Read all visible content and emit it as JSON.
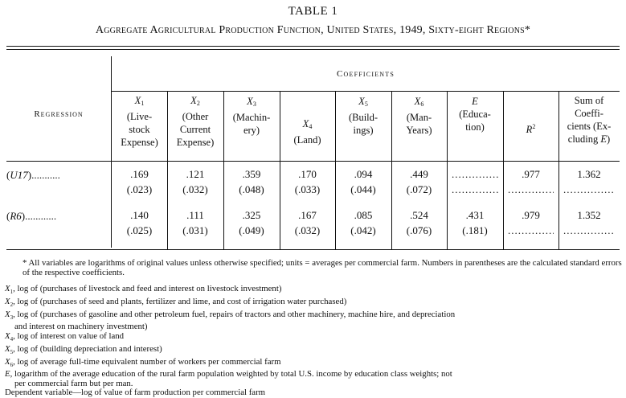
{
  "title": "TABLE 1",
  "subtitle": "Aggregate Agricultural Production Function, United States, 1949, Sixty-eight Regions*",
  "coefficients_header": "Coefficients",
  "regression_header": "Regression",
  "columns": [
    {
      "var": "X",
      "sub": "1",
      "desc": [
        "(Live-",
        "stock",
        "Expense)"
      ]
    },
    {
      "var": "X",
      "sub": "2",
      "desc": [
        "(Other",
        "Current",
        "Expense)"
      ]
    },
    {
      "var": "X",
      "sub": "3",
      "desc": [
        "(Machin-",
        "ery)"
      ]
    },
    {
      "var": "X",
      "sub": "4",
      "desc": [
        "(Land)"
      ]
    },
    {
      "var": "X",
      "sub": "5",
      "desc": [
        "(Build-",
        "ings)"
      ]
    },
    {
      "var": "X",
      "sub": "6",
      "desc": [
        "(Man-",
        "Years)"
      ]
    },
    {
      "var": "E",
      "sub": "",
      "desc": [
        "(Educa-",
        "tion)"
      ]
    },
    {
      "var": "R",
      "sub": "2",
      "desc": []
    },
    {
      "var": "",
      "sub": "",
      "desc": [
        "Sum of",
        "Coeffi-",
        "cients (Ex-",
        "cluding E)"
      ]
    }
  ],
  "rows": [
    {
      "label": "(U17)...........",
      "values": [
        ".169",
        ".121",
        ".359",
        ".170",
        ".094",
        ".449",
        "",
        ".977",
        "1.362"
      ],
      "errors": [
        "(.023)",
        "(.032)",
        "(.048)",
        "(.033)",
        "(.044)",
        "(.072)",
        "",
        "",
        ""
      ]
    },
    {
      "label": "(R6)............",
      "values": [
        ".140",
        ".111",
        ".325",
        ".167",
        ".085",
        ".524",
        ".431",
        ".979",
        "1.352"
      ],
      "errors": [
        "(.025)",
        "(.031)",
        "(.049)",
        "(.032)",
        "(.042)",
        "(.076)",
        "(.181)",
        "",
        ""
      ]
    }
  ],
  "dots": "........................",
  "notes": {
    "star": "* All variables are logarithms of original values unless otherwise specified; units = averages per commercial farm. Numbers in parentheses are the calculated standard errors of the respective coefficients.",
    "x1": ", log of (purchases of livestock and feed and interest on livestock investment)",
    "x2": ", log of (purchases of seed and plants, fertilizer and lime, and cost of irrigation water purchased)",
    "x3a": ", log of (purchases of gasoline and other petroleum fuel, repairs of tractors and other machinery, machine hire, and depreciation",
    "x3b": "and interest on machinery investment)",
    "x4": ", log of interest on value of land",
    "x5": ", log of (building depreciation and interest)",
    "x6": ", log of average full-time equivalent number of workers per commercial farm",
    "ea": ", logarithm of the average education of the rural farm population weighted by total U.S. income by education class weights; not",
    "eb": "per commercial farm but per man.",
    "dep": "Dependent variable—log of value of farm production per commercial farm"
  }
}
